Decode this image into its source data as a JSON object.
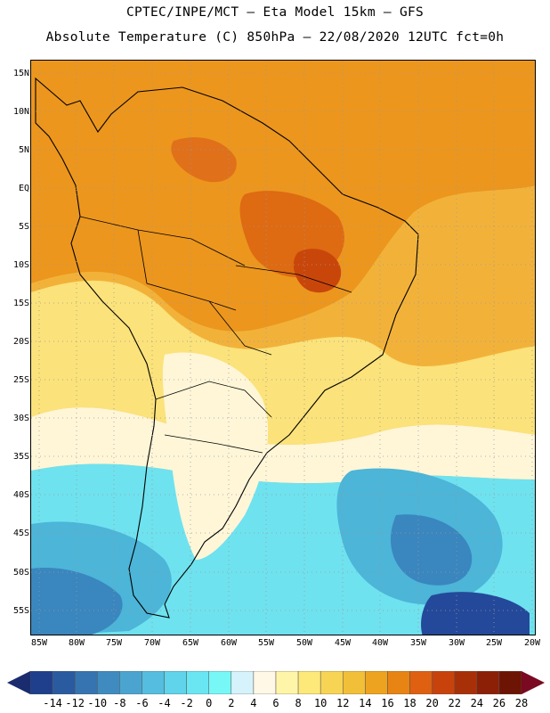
{
  "header": {
    "line1": "CPTEC/INPE/MCT –  Eta Model 15km – GFS",
    "line2": "Absolute Temperature (C) 850hPa – 22/08/2020 12UTC fct=0h"
  },
  "map": {
    "lat_labels": [
      "15N",
      "10N",
      "5N",
      "EQ",
      "5S",
      "10S",
      "15S",
      "20S",
      "25S",
      "30S",
      "35S",
      "40S",
      "45S",
      "50S",
      "55S"
    ],
    "lon_labels": [
      "85W",
      "80W",
      "75W",
      "70W",
      "65W",
      "60W",
      "55W",
      "50W",
      "45W",
      "40W",
      "35W",
      "30W",
      "25W",
      "20W"
    ]
  },
  "colorbar": {
    "labels": [
      "-14",
      "-12",
      "-10",
      "-8",
      "-6",
      "-4",
      "-2",
      "0",
      "2",
      "4",
      "6",
      "8",
      "10",
      "12",
      "14",
      "16",
      "18",
      "20",
      "22",
      "24",
      "26",
      "28"
    ],
    "colors": [
      "#1f3f8c",
      "#2a5ba0",
      "#3574b0",
      "#3f8bc0",
      "#4ba4d0",
      "#55bde0",
      "#5fd4ea",
      "#6ae6f2",
      "#78f7f7",
      "#d6f3fb",
      "#fff8e6",
      "#fff5a8",
      "#fde87a",
      "#f8d455",
      "#f2bf38",
      "#eea320",
      "#e88414",
      "#df6010",
      "#c8420c",
      "#a83008",
      "#8c2006",
      "#6e1404"
    ],
    "end_low": "#1a2c6e",
    "end_high": "#7a0a22"
  },
  "colors": {
    "ocean_warm": "#f3b23a",
    "continent_hot": "#e8851c"
  }
}
